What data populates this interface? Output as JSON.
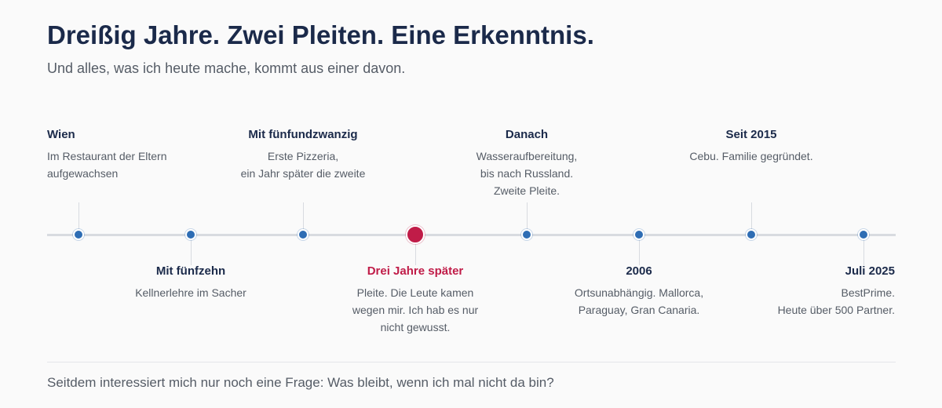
{
  "header": {
    "title": "Dreißig Jahre. Zwei Pleiten. Eine Erkenntnis.",
    "subtitle": "Und alles, was ich heute mache, kommt aus einer davon."
  },
  "colors": {
    "dot": "#2e6db4",
    "highlight": "#c01c48",
    "text_dark": "#1b2a4a",
    "text_muted": "#555c66"
  },
  "timeline": {
    "events": [
      {
        "heading": "Wien",
        "text": "Im Restaurant der Eltern\naufgewachsen",
        "side": "top",
        "highlight": false
      },
      {
        "heading": "Mit fünfzehn",
        "text": "Kellnerlehre im Sacher",
        "side": "bottom",
        "highlight": false
      },
      {
        "heading": "Mit fünfundzwanzig",
        "text": "Erste Pizzeria,\nein Jahr später die zweite",
        "side": "top",
        "highlight": false
      },
      {
        "heading": "Drei Jahre später",
        "text": "Pleite. Die Leute kamen\nwegen mir. Ich hab es nur\nnicht gewusst.",
        "side": "bottom",
        "highlight": true
      },
      {
        "heading": "Danach",
        "text": "Wasseraufbereitung,\nbis nach Russland.\nZweite Pleite.",
        "side": "top",
        "highlight": false
      },
      {
        "heading": "2006",
        "text": "Ortsunabhängig. Mallorca,\nParaguay, Gran Canaria.",
        "side": "bottom",
        "highlight": false
      },
      {
        "heading": "Seit 2015",
        "text": "Cebu. Familie gegründet.",
        "side": "top",
        "highlight": false
      },
      {
        "heading": "Juli 2025",
        "text": "BestPrime.\nHeute über 500 Partner.",
        "side": "bottom",
        "highlight": false
      }
    ]
  },
  "footer": {
    "text": "Seitdem interessiert mich nur noch eine Frage: Was bleibt, wenn ich mal nicht da bin?"
  }
}
